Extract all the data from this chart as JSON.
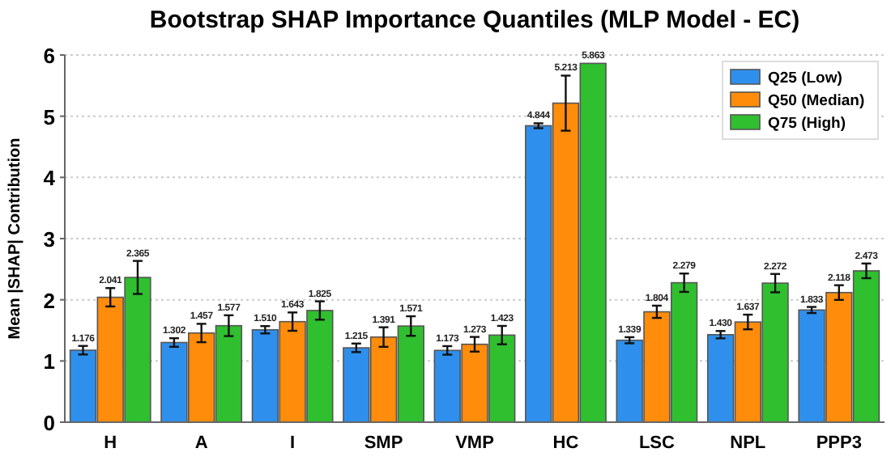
{
  "chart_data": {
    "type": "bar",
    "title": "Bootstrap SHAP Importance Quantiles (MLP Model - EC)",
    "ylabel": "Mean |SHAP| Contribution",
    "categories": [
      "H",
      "A",
      "I",
      "SMP",
      "VMP",
      "HC",
      "LSC",
      "NPL",
      "PPP3"
    ],
    "series": [
      {
        "name": "Q25 (Low)",
        "color": "#2e90ec",
        "values": [
          1.176,
          1.302,
          1.51,
          1.215,
          1.173,
          4.844,
          1.339,
          1.43,
          1.833
        ],
        "value_labels": [
          "1.176",
          "1.302",
          "1.510",
          "1.215",
          "1.173",
          "4.844",
          "1.339",
          "1.430",
          "1.833"
        ],
        "errors": [
          0.07,
          0.07,
          0.06,
          0.07,
          0.07,
          0.04,
          0.05,
          0.06,
          0.05
        ]
      },
      {
        "name": "Q50 (Median)",
        "color": "#ff8c0a",
        "values": [
          2.041,
          1.457,
          1.643,
          1.391,
          1.273,
          5.213,
          1.804,
          1.637,
          2.118
        ],
        "value_labels": [
          "2.041",
          "1.457",
          "1.643",
          "1.391",
          "1.273",
          "5.213",
          "1.804",
          "1.637",
          "2.118"
        ],
        "errors": [
          0.15,
          0.15,
          0.15,
          0.16,
          0.12,
          0.45,
          0.1,
          0.12,
          0.12
        ]
      },
      {
        "name": "Q75 (High)",
        "color": "#2fbf2f",
        "values": [
          2.365,
          1.577,
          1.825,
          1.571,
          1.423,
          5.863,
          2.279,
          2.272,
          2.473
        ],
        "value_labels": [
          "2.365",
          "1.577",
          "1.825",
          "1.571",
          "1.423",
          "5.863",
          "2.279",
          "2.272",
          "2.473"
        ],
        "errors": [
          0.27,
          0.17,
          0.15,
          0.16,
          0.15,
          null,
          0.15,
          0.15,
          0.12
        ]
      }
    ],
    "ylim": [
      0,
      6
    ],
    "yticks": [
      0,
      1,
      2,
      3,
      4,
      5,
      6
    ],
    "grid": "y",
    "legend": "top right"
  }
}
